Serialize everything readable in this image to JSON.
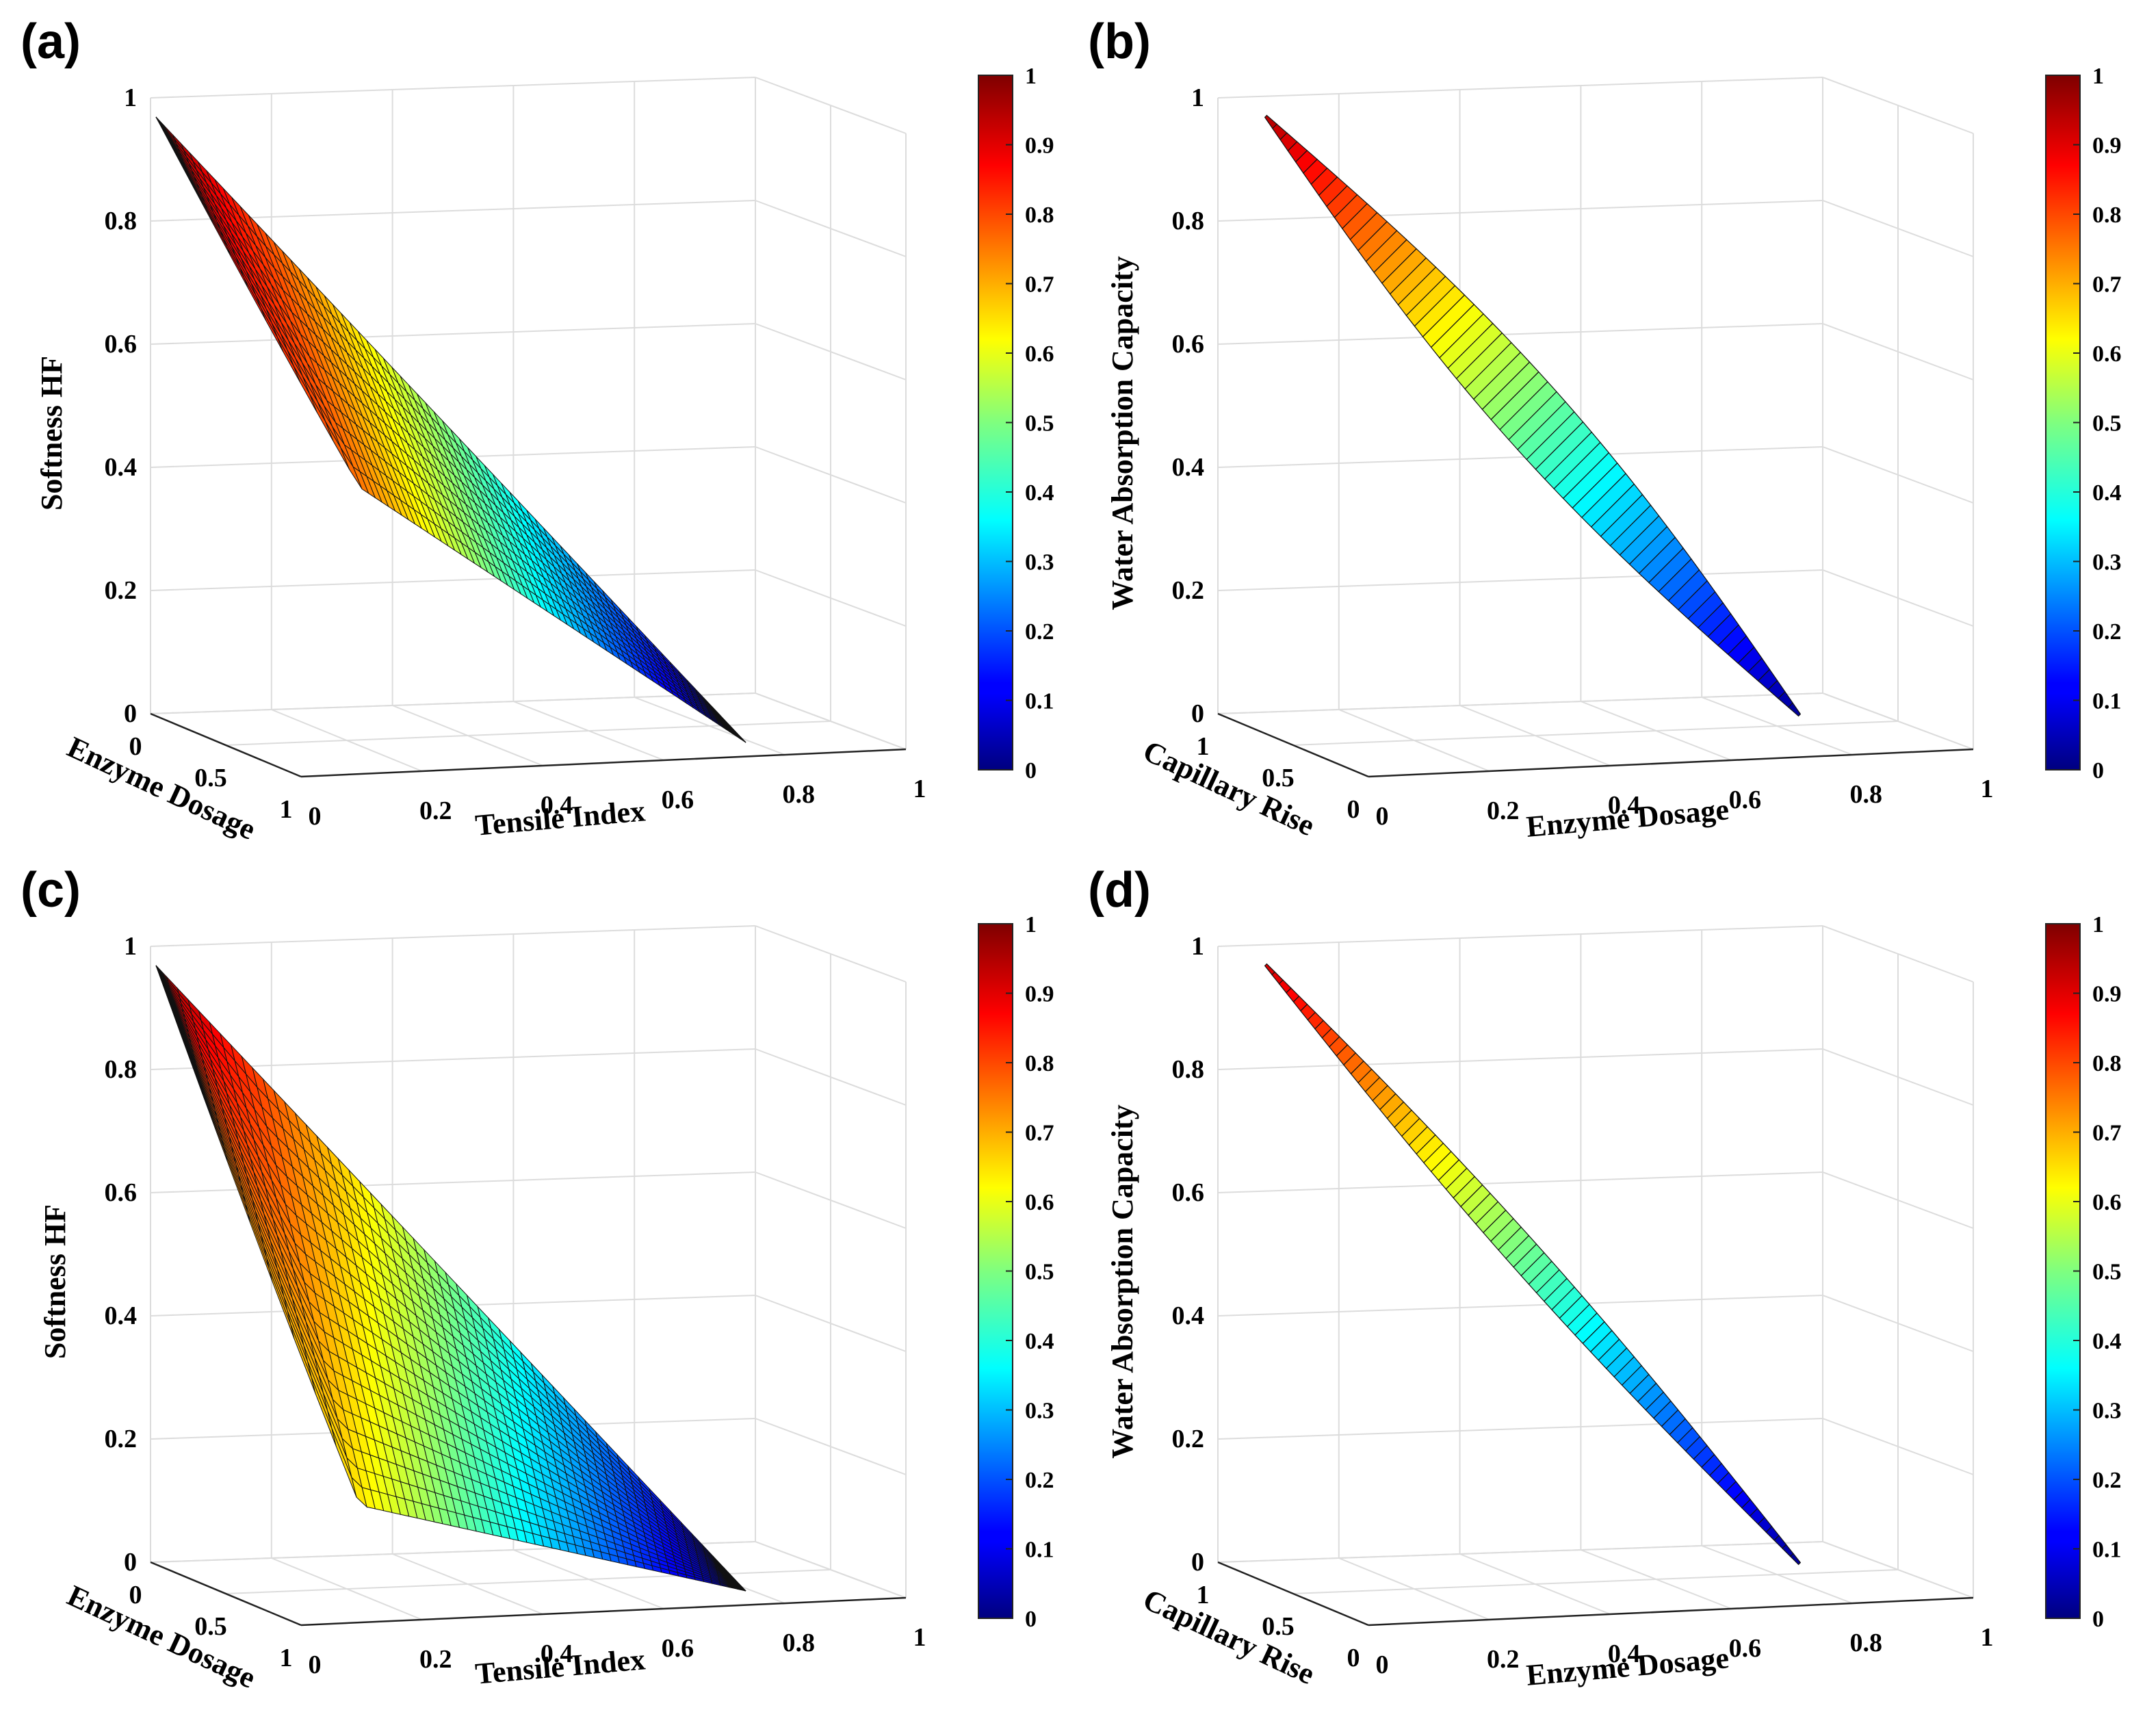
{
  "colors": {
    "mesh_edge": "#111111",
    "grid": "#dcdcdc",
    "colormap": "jet"
  },
  "chart_data": [
    {
      "panel": "(a)",
      "type": "surface3d",
      "colormap": "jet",
      "colorbar": {
        "min": 0,
        "max": 1,
        "ticks": [
          "0",
          "0.1",
          "0.2",
          "0.3",
          "0.4",
          "0.5",
          "0.6",
          "0.7",
          "0.8",
          "0.9",
          "1"
        ]
      },
      "zlabel": "Softness HF",
      "xlabel": "Tensile Index",
      "ylabel": "Enzyme Dosage",
      "zticks": [
        "0",
        "0.2",
        "0.4",
        "0.6",
        "0.8",
        "1"
      ],
      "xticks": [
        "0",
        "0.2",
        "0.4",
        "0.6",
        "0.8",
        "1"
      ],
      "yticks": [
        "0",
        "0.5",
        "1"
      ],
      "xlim": [
        0,
        1
      ],
      "ylim": [
        0,
        1
      ],
      "zlim": [
        0,
        1
      ],
      "grid": true,
      "surface": {
        "z_start": 0.98,
        "z_end": 0.0,
        "z_break": 0.45,
        "break_x": 0.22,
        "mesh": "dense"
      }
    },
    {
      "panel": "(b)",
      "type": "surface3d",
      "colormap": "jet",
      "colorbar": {
        "min": 0,
        "max": 1,
        "ticks": [
          "0",
          "0.1",
          "0.2",
          "0.3",
          "0.4",
          "0.5",
          "0.6",
          "0.7",
          "0.8",
          "0.9",
          "1"
        ]
      },
      "zlabel": "Water Absorption Capacity",
      "xlabel": "Enzyme Dosage",
      "ylabel": "Capillary Rise",
      "zticks": [
        "0",
        "0.2",
        "0.4",
        "0.6",
        "0.8",
        "1"
      ],
      "xticks": [
        "0",
        "0.2",
        "0.4",
        "0.6",
        "0.8",
        "1"
      ],
      "yticks": [
        "1",
        "0.5",
        "0"
      ],
      "xlim": [
        0,
        1
      ],
      "ylim": [
        0,
        1
      ],
      "zlim": [
        0,
        1
      ],
      "grid": true,
      "surface": {
        "z_start": 0.95,
        "z_end": 0.02,
        "mesh": "narrow"
      }
    },
    {
      "panel": "(c)",
      "type": "surface3d",
      "colormap": "jet",
      "colorbar": {
        "min": 0,
        "max": 1,
        "ticks": [
          "0",
          "0.1",
          "0.2",
          "0.3",
          "0.4",
          "0.5",
          "0.6",
          "0.7",
          "0.8",
          "0.9",
          "1"
        ]
      },
      "zlabel": "Softness HF",
      "xlabel": "Tensile Index",
      "ylabel": "Enzyme Dosage",
      "zticks": [
        "0",
        "0.2",
        "0.4",
        "0.6",
        "0.8",
        "1"
      ],
      "xticks": [
        "0",
        "0.2",
        "0.4",
        "0.6",
        "0.8",
        "1"
      ],
      "yticks": [
        "0",
        "0.5",
        "1"
      ],
      "xlim": [
        0,
        1
      ],
      "ylim": [
        0,
        1
      ],
      "zlim": [
        0,
        1
      ],
      "grid": true,
      "surface": {
        "z_start": 0.98,
        "z_end": 0.0,
        "z_break": 0.12,
        "break_x": 0.22,
        "mesh": "wide"
      }
    },
    {
      "panel": "(d)",
      "type": "surface3d",
      "colormap": "jet",
      "colorbar": {
        "min": 0,
        "max": 1,
        "ticks": [
          "0",
          "0.1",
          "0.2",
          "0.3",
          "0.4",
          "0.5",
          "0.6",
          "0.7",
          "0.8",
          "0.9",
          "1"
        ]
      },
      "zlabel": "Water Absorption Capacity",
      "xlabel": "Enzyme Dosage",
      "ylabel": "Capillary Rise",
      "zticks": [
        "0",
        "0.2",
        "0.4",
        "0.6",
        "0.8",
        "1"
      ],
      "xticks": [
        "0",
        "0.2",
        "0.4",
        "0.6",
        "0.8",
        "1"
      ],
      "yticks": [
        "1",
        "0.5",
        "0"
      ],
      "xlim": [
        0,
        1
      ],
      "ylim": [
        0,
        1
      ],
      "zlim": [
        0,
        1
      ],
      "grid": true,
      "surface": {
        "z_start": 0.92,
        "z_end": 0.02,
        "mesh": "thin"
      }
    }
  ]
}
